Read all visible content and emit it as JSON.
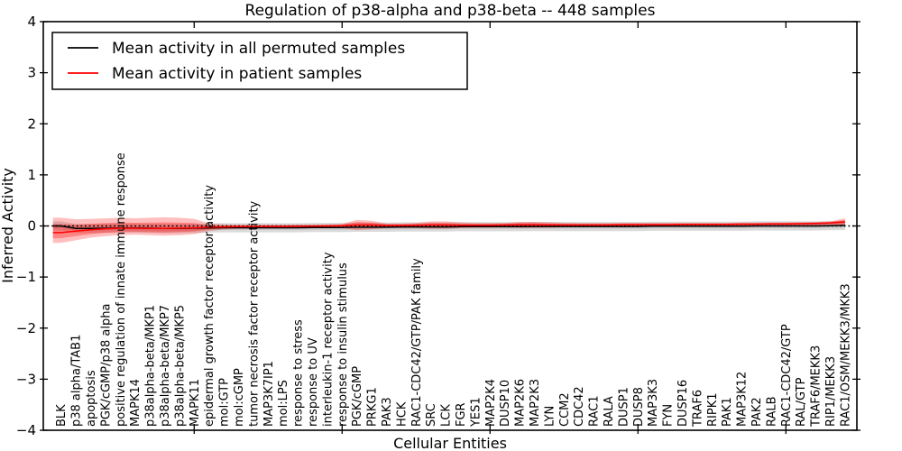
{
  "title": "Regulation of p38-alpha and p38-beta -- 448 samples",
  "legend": {
    "entries": [
      {
        "label": "Mean activity in all permuted samples",
        "color": "#000000"
      },
      {
        "label": "Mean activity in patient samples",
        "color": "#ff0000"
      }
    ]
  },
  "chart_data": {
    "type": "line",
    "title": "Regulation of p38-alpha and p38-beta -- 448 samples",
    "xlabel": "Cellular Entities",
    "ylabel": "Inferred Activity",
    "ylim": [
      -4,
      4
    ],
    "yticks": [
      -4,
      -3,
      -2,
      -1,
      0,
      1,
      2,
      3,
      4
    ],
    "xlim": [
      -0.2,
      54.8
    ],
    "xticks": [
      10,
      20,
      30,
      40,
      50
    ],
    "grid": false,
    "legend_position": "upper left",
    "zero_line": {
      "value": 0,
      "style": "dotted",
      "color": "#000000"
    },
    "categories": [
      "BLK",
      "p38 alpha/TAB1",
      "apoptosis",
      "PGK/cGMP/p38 alpha",
      "positive regulation of innate immune response",
      "MAPK14",
      "p38alpha-beta/MKP1",
      "p38alpha-beta/MKP7",
      "p38alpha-beta/MKP5",
      "MAPK11",
      "epidermal growth factor receptor activity",
      "mol:GTP",
      "mol:cGMP",
      "tumor necrosis factor receptor activity",
      "MAP3K7IP1",
      "mol:LPS",
      "response to stress",
      "response to UV",
      "interleukin-1 receptor activity",
      "response to insulin stimulus",
      "PGK/cGMP",
      "PRKG1",
      "PAK3",
      "HCK",
      "RAC1-CDC42/GTP/PAK family",
      "SRC",
      "LCK",
      "FGR",
      "YES1",
      "MAP2K4",
      "DUSP10",
      "MAP2K6",
      "MAP2K3",
      "LYN",
      "CCM2",
      "CDC42",
      "RAC1",
      "RALA",
      "DUSP1",
      "DUSP8",
      "MAP3K3",
      "FYN",
      "DUSP16",
      "TRAF6",
      "RIPK1",
      "PAK1",
      "MAP3K12",
      "PAK2",
      "RALB",
      "RAC1-CDC42/GTP",
      "RAL/GTP",
      "TRAF6/MEKK3",
      "RIP1/MEKK3",
      "RAC1/OSM/MEKK3/MKK3"
    ],
    "series": [
      {
        "name": "Mean activity in all permuted samples",
        "color": "#000000",
        "values": [
          0.0,
          -0.05,
          -0.05,
          -0.045,
          -0.04,
          -0.04,
          -0.045,
          -0.05,
          -0.05,
          -0.045,
          -0.04,
          -0.035,
          -0.035,
          -0.035,
          -0.035,
          -0.035,
          -0.035,
          -0.03,
          -0.03,
          -0.03,
          -0.025,
          -0.025,
          -0.025,
          -0.02,
          -0.02,
          -0.02,
          -0.02,
          -0.015,
          -0.015,
          -0.015,
          -0.015,
          -0.015,
          -0.01,
          -0.01,
          -0.01,
          -0.01,
          -0.01,
          -0.01,
          -0.01,
          -0.01,
          -0.005,
          -0.005,
          -0.005,
          -0.005,
          -0.005,
          -0.005,
          -0.005,
          0,
          0,
          0,
          0,
          0,
          0.005,
          0.01
        ]
      },
      {
        "name": "Mean activity in patient samples",
        "color": "#ff0000",
        "values": [
          -0.13,
          -0.1,
          -0.075,
          -0.055,
          -0.045,
          -0.045,
          -0.05,
          -0.05,
          -0.045,
          -0.04,
          -0.025,
          -0.02,
          -0.015,
          -0.015,
          -0.01,
          -0.01,
          -0.005,
          -0.005,
          0,
          0.005,
          0.02,
          0.02,
          0.01,
          0.01,
          0.015,
          0.02,
          0.02,
          0.015,
          0.015,
          0.015,
          0.02,
          0.025,
          0.025,
          0.02,
          0.02,
          0.02,
          0.02,
          0.02,
          0.025,
          0.025,
          0.025,
          0.025,
          0.03,
          0.03,
          0.03,
          0.03,
          0.035,
          0.035,
          0.04,
          0.04,
          0.045,
          0.05,
          0.06,
          0.08
        ]
      }
    ],
    "bands": {
      "patient_outer_upper": [
        0.16,
        0.13,
        0.14,
        0.15,
        0.16,
        0.15,
        0.16,
        0.17,
        0.16,
        0.14,
        0.05,
        0.03,
        0.025,
        0.025,
        0.025,
        0.025,
        0.025,
        0.025,
        0.03,
        0.04,
        0.12,
        0.1,
        0.05,
        0.05,
        0.06,
        0.09,
        0.09,
        0.07,
        0.06,
        0.06,
        0.06,
        0.08,
        0.08,
        0.07,
        0.06,
        0.055,
        0.055,
        0.055,
        0.06,
        0.06,
        0.06,
        0.06,
        0.06,
        0.06,
        0.06,
        0.06,
        0.065,
        0.065,
        0.07,
        0.07,
        0.075,
        0.08,
        0.09,
        0.15
      ],
      "patient_outer_lower": [
        -0.33,
        -0.28,
        -0.23,
        -0.2,
        -0.18,
        -0.17,
        -0.18,
        -0.19,
        -0.18,
        -0.16,
        -0.1,
        -0.07,
        -0.055,
        -0.055,
        -0.05,
        -0.05,
        -0.045,
        -0.045,
        -0.04,
        -0.045,
        -0.085,
        -0.065,
        -0.04,
        -0.04,
        -0.04,
        -0.055,
        -0.055,
        -0.045,
        -0.035,
        -0.035,
        -0.03,
        -0.04,
        -0.04,
        -0.035,
        -0.025,
        -0.02,
        -0.02,
        -0.02,
        -0.02,
        -0.02,
        -0.015,
        -0.015,
        -0.015,
        -0.01,
        -0.01,
        -0.01,
        -0.01,
        -0.005,
        -0.005,
        -0.005,
        0.0,
        0.0,
        0.005,
        0.0
      ],
      "patient_inner_factor": 0.55,
      "patient_band_color": "#ff0000",
      "patient_band_outer_opacity": 0.25,
      "patient_band_inner_opacity": 0.3,
      "permuted_outer_half_width": 0.09,
      "permuted_inner_half_width": 0.045,
      "permuted_band_color": "#999999",
      "permuted_band_outer_opacity": 0.35,
      "permuted_band_inner_opacity": 0.3
    }
  }
}
